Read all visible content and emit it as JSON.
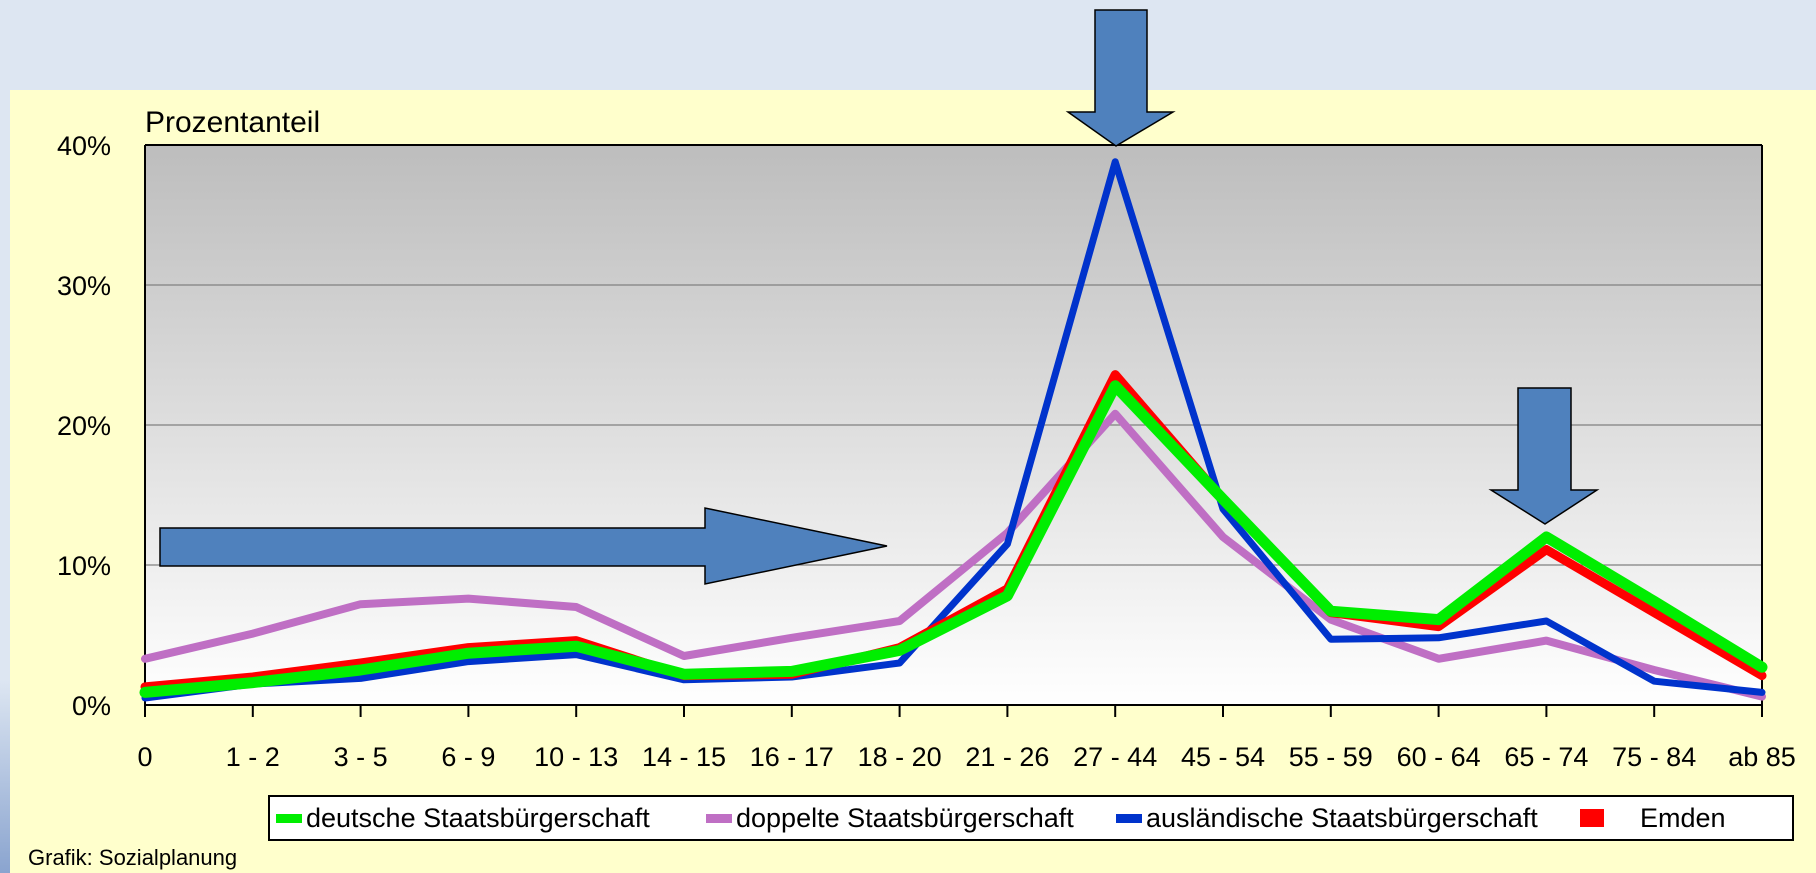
{
  "chart_data": {
    "type": "line",
    "ylabel": "Prozentanteil",
    "ylim": [
      0,
      40
    ],
    "yticks": [
      "0%",
      "10%",
      "20%",
      "30%",
      "40%"
    ],
    "categories": [
      "0",
      "1 - 2",
      "3 - 5",
      "6 - 9",
      "10 - 13",
      "14 - 15",
      "16 - 17",
      "18 - 20",
      "21 - 26",
      "27 - 44",
      "45 - 54",
      "55 - 59",
      "60 - 64",
      "65 - 74",
      "75 - 84",
      "ab 85"
    ],
    "grid": true,
    "legend_position": "bottom",
    "series": [
      {
        "name": "deutsche Staatsbürgerschaft",
        "color": "#00ee00",
        "values": [
          0.9,
          1.6,
          2.5,
          3.7,
          4.2,
          2.2,
          2.4,
          3.9,
          7.8,
          22.8,
          14.7,
          6.7,
          6.1,
          12.0,
          7.4,
          2.7
        ]
      },
      {
        "name": "doppelte Staatsbürgerschaft",
        "color": "#bf6fc4",
        "values": [
          3.3,
          5.1,
          7.2,
          7.6,
          7.0,
          3.5,
          4.8,
          6.0,
          12.3,
          20.8,
          12.0,
          6.1,
          3.3,
          4.6,
          2.5,
          0.6
        ]
      },
      {
        "name": "ausländische Staatsbürgerschaft",
        "color": "#0033cc",
        "values": [
          0.5,
          1.5,
          1.9,
          3.1,
          3.6,
          1.8,
          2.0,
          3.0,
          11.5,
          38.8,
          14.0,
          4.7,
          4.8,
          6.0,
          1.7,
          0.9
        ]
      },
      {
        "name": "Emden",
        "color": "#ff0000",
        "values": [
          1.3,
          2.0,
          3.0,
          4.1,
          4.6,
          2.1,
          2.2,
          4.1,
          8.3,
          23.6,
          14.7,
          6.6,
          5.6,
          11.1,
          6.6,
          2.1
        ]
      }
    ]
  },
  "footer": {
    "caption": "Grafik: Sozialplanung"
  }
}
